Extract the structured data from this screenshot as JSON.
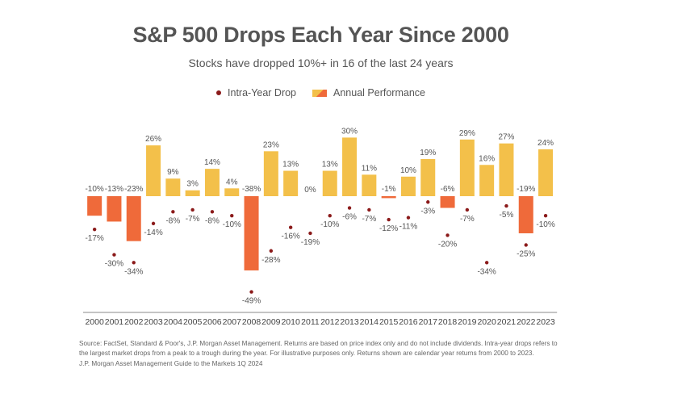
{
  "chart_data": {
    "type": "bar",
    "title": "S&P 500 Drops Each Year Since 2000",
    "subtitle": "Stocks have dropped 10%+ in 16 of the last 24 years",
    "legend": [
      {
        "label": "Intra-Year Drop",
        "marker": "dot",
        "color": "#8b1a1a"
      },
      {
        "label": "Annual Performance",
        "marker": "bar",
        "colors": [
          "#f3c04a",
          "#ef6a3a"
        ]
      }
    ],
    "categories": [
      "2000",
      "2001",
      "2002",
      "2003",
      "2004",
      "2005",
      "2006",
      "2007",
      "2008",
      "2009",
      "2010",
      "2011",
      "2012",
      "2013",
      "2014",
      "2015",
      "2016",
      "2017",
      "2018",
      "2019",
      "2020",
      "2021",
      "2022",
      "2023"
    ],
    "series": [
      {
        "name": "Annual Performance",
        "type": "bar",
        "values": [
          -10,
          -13,
          -23,
          26,
          9,
          3,
          14,
          4,
          -38,
          23,
          13,
          0,
          13,
          30,
          11,
          -1,
          10,
          19,
          -6,
          29,
          16,
          27,
          -19,
          24
        ],
        "labels": [
          "-10%",
          "-13%",
          "-23%",
          "26%",
          "9%",
          "3%",
          "14%",
          "4%",
          "-38%",
          "23%",
          "13%",
          "0%",
          "13%",
          "30%",
          "11%",
          "-1%",
          "10%",
          "19%",
          "-6%",
          "29%",
          "16%",
          "27%",
          "-19%",
          "24%"
        ]
      },
      {
        "name": "Intra-Year Drop",
        "type": "scatter",
        "values": [
          -17,
          -30,
          -34,
          -14,
          -8,
          -7,
          -8,
          -10,
          -49,
          -28,
          -16,
          -19,
          -10,
          -6,
          -7,
          -12,
          -11,
          -3,
          -20,
          -7,
          -34,
          -5,
          -25,
          -10
        ],
        "labels": [
          "-17%",
          "-30%",
          "-34%",
          "-14%",
          "-8%",
          "-7%",
          "-8%",
          "-10%",
          "-49%",
          "-28%",
          "-16%",
          "-19%",
          "-10%",
          "-6%",
          "-7%",
          "-12%",
          "-11%",
          "-3%",
          "-20%",
          "-7%",
          "-34%",
          "-5%",
          "-25%",
          "-10%"
        ]
      }
    ],
    "colors": {
      "positive": "#f3c04a",
      "negative": "#ef6a3a",
      "dot": "#8b1a1a",
      "axis": "#888888"
    }
  },
  "source": {
    "line1": "Source: FactSet, Standard & Poor's, J.P. Morgan Asset Management. Returns are based on price index only and do not include dividends. Intra-year drops refers to the largest market drops from a peak to a trough during the year. For illustrative purposes only. Returns shown are calendar year returns from 2000 to 2023.",
    "line2": "J.P. Morgan Asset Management Guide to the Markets 1Q 2024"
  }
}
